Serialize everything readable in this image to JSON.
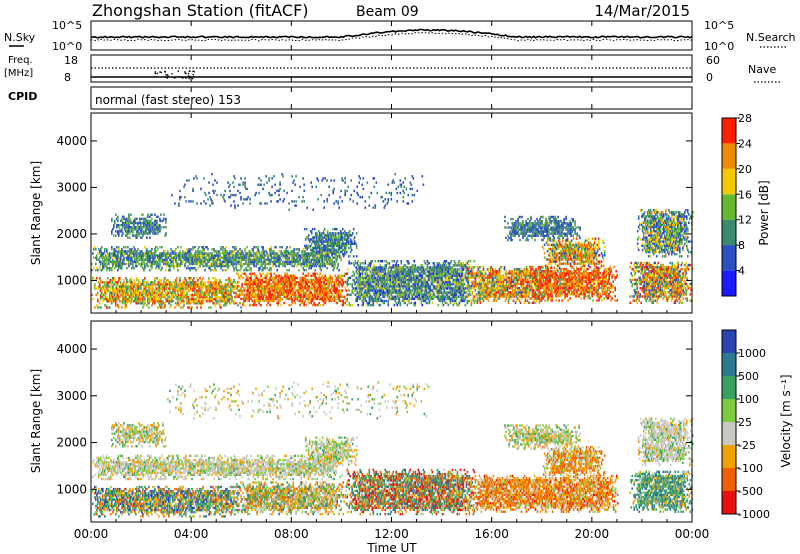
{
  "header": {
    "station": "Zhongshan Station (fitACF)",
    "beam": "Beam 09",
    "date": "14/Mar/2015"
  },
  "noise_panel": {
    "left_label": "N.Sky",
    "right_label": "N.Search",
    "left_ticks": [
      "10^5",
      "10^0"
    ],
    "right_ticks": [
      "10^5",
      "10^0"
    ]
  },
  "freq_panel": {
    "left_label_line1": "Freq.",
    "left_label_line2": "[MHz]",
    "right_label": "Nave",
    "left_ticks": [
      "18",
      "8"
    ],
    "right_ticks": [
      "60",
      "0"
    ]
  },
  "cpid": {
    "label": "CPID",
    "value": "normal (fast stereo) 153"
  },
  "chart_data": [
    {
      "type": "heatmap",
      "name": "power",
      "ylabel": "Slant Range [km]",
      "ylim": [
        300,
        4600
      ],
      "y_ticks": [
        1000,
        2000,
        3000,
        4000
      ],
      "xlim": [
        0,
        24
      ],
      "colorbar_label": "Power [dB]",
      "colorbar_ticks": [
        "4",
        "8",
        "12",
        "16",
        "20",
        "24",
        "28"
      ],
      "colorbar_colors": [
        "#1a1aff",
        "#2a4fc0",
        "#3a8a70",
        "#66b830",
        "#f5c800",
        "#f08a00",
        "#ff2200"
      ],
      "colorbar_range": [
        0,
        32
      ]
    },
    {
      "type": "heatmap",
      "name": "velocity",
      "ylabel": "Slant Range [km]",
      "ylim": [
        300,
        4600
      ],
      "y_ticks": [
        1000,
        2000,
        3000,
        4000
      ],
      "xlim": [
        0,
        24
      ],
      "colorbar_label": "Velocity [m s⁻¹]",
      "colorbar_ticks": [
        "1000",
        "500",
        "100",
        "25",
        "-25",
        "-100",
        "-500",
        "-1000"
      ],
      "colorbar_colors": [
        "#2844b0",
        "#2a7a90",
        "#3aa060",
        "#7ccc40",
        "#c8c8c0",
        "#f0a000",
        "#f06000",
        "#e81010"
      ]
    }
  ],
  "x_axis": {
    "ticks": [
      "00:00",
      "04:00",
      "08:00",
      "12:00",
      "16:00",
      "20:00",
      "00:00"
    ],
    "label": "Time UT"
  }
}
